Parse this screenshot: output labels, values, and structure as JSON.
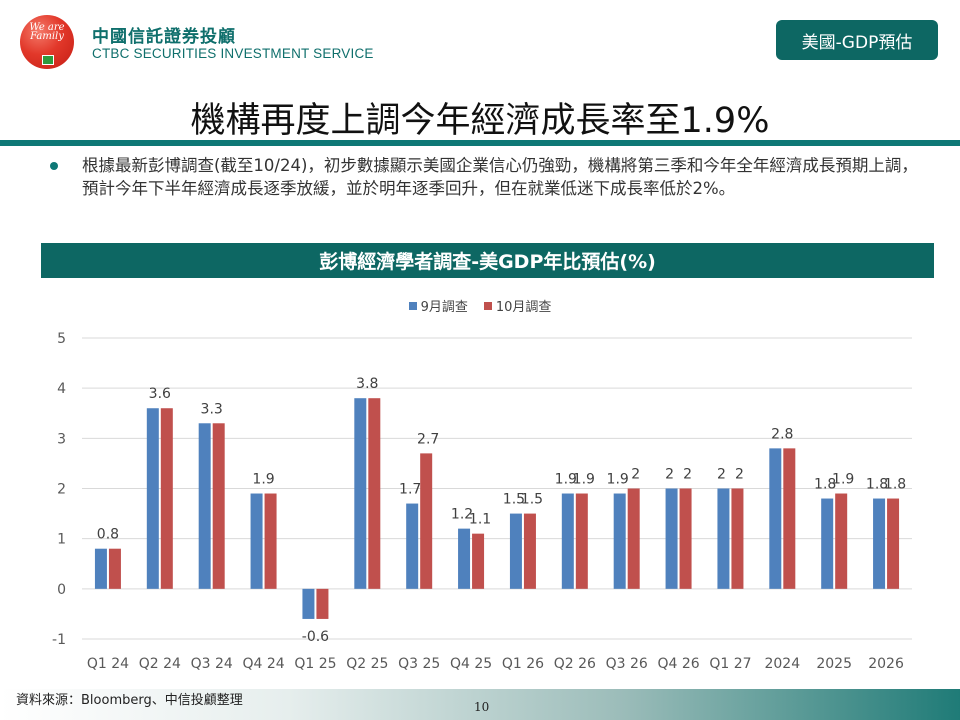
{
  "header": {
    "logo_text": "We are Family",
    "brand_zh": "中國信託證券投顧",
    "brand_en": "CTBC SECURITIES INVESTMENT SERVICE",
    "section_tag": "美國-GDP預估"
  },
  "page_title": "機構再度上調今年經濟成長率至1.9%",
  "body": {
    "bullet_text": "根據最新彭博調查(截至10/24)，初步數據顯示美國企業信心仍強勁，機構將第三季和今年全年經濟成長預期上調，預計今年下半年經濟成長逐季放緩，並於明年逐季回升，但在就業低迷下成長率低於2%。"
  },
  "chart_banner": "彭博經濟學者調查-美GDP年比預估(%)",
  "colors": {
    "brand_teal": "#0d6763",
    "series_sep": "#4f81bd",
    "series_oct": "#c0504d"
  },
  "chart_data": {
    "type": "bar",
    "title": "彭博經濟學者調查-美GDP年比預估(%)",
    "xlabel": "",
    "ylabel": "",
    "ylim": [
      -1,
      5
    ],
    "yticks": [
      -1,
      0,
      1,
      2,
      3,
      4,
      5
    ],
    "grid": true,
    "legend_position": "top-center",
    "categories": [
      "Q1 24",
      "Q2 24",
      "Q3 24",
      "Q4 24",
      "Q1 25",
      "Q2 25",
      "Q3 25",
      "Q4 25",
      "Q1 26",
      "Q2 26",
      "Q3 26",
      "Q4 26",
      "Q1 27",
      "2024",
      "2025",
      "2026"
    ],
    "series": [
      {
        "name": "9月調查",
        "values": [
          0.8,
          3.6,
          3.3,
          1.9,
          -0.6,
          3.8,
          1.7,
          1.2,
          1.5,
          1.9,
          1.9,
          2.0,
          2.0,
          2.8,
          1.8,
          1.8
        ]
      },
      {
        "name": "10月調查",
        "values": [
          0.8,
          3.6,
          3.3,
          1.9,
          -0.6,
          3.8,
          2.7,
          1.1,
          1.5,
          1.9,
          2.0,
          2.0,
          2.0,
          2.8,
          1.9,
          1.8
        ]
      }
    ],
    "data_labels": [
      {
        "category": "Q1 24",
        "text": "0.8"
      },
      {
        "category": "Q2 24",
        "text": "3.6"
      },
      {
        "category": "Q3 24",
        "text": "3.3"
      },
      {
        "category": "Q4 24",
        "text": "1.9"
      },
      {
        "category": "Q1 25",
        "text": "-0.6"
      },
      {
        "category": "Q2 25",
        "text": "3.8"
      },
      {
        "category": "Q3 25",
        "series": "9月調查",
        "text": "1.7"
      },
      {
        "category": "Q3 25",
        "series": "10月調查",
        "text": "2.7"
      },
      {
        "category": "Q4 25",
        "series": "9月調查",
        "text": "1.2"
      },
      {
        "category": "Q4 25",
        "series": "10月調查",
        "text": "1.1"
      },
      {
        "category": "Q1 26",
        "series": "9月調查",
        "text": "1.5"
      },
      {
        "category": "Q1 26",
        "series": "10月調查",
        "text": "1.5"
      },
      {
        "category": "Q2 26",
        "series": "9月調查",
        "text": "1.9"
      },
      {
        "category": "Q2 26",
        "series": "10月調查",
        "text": "1.9"
      },
      {
        "category": "Q3 26",
        "series": "9月調查",
        "text": "1.9"
      },
      {
        "category": "Q3 26",
        "series": "10月調查",
        "text": "2"
      },
      {
        "category": "Q4 26",
        "series": "9月調查",
        "text": "2"
      },
      {
        "category": "Q4 26",
        "series": "10月調查",
        "text": "2"
      },
      {
        "category": "Q1 27",
        "series": "9月調查",
        "text": "2"
      },
      {
        "category": "Q1 27",
        "series": "10月調查",
        "text": "2"
      },
      {
        "category": "2024",
        "text": "2.8"
      },
      {
        "category": "2025",
        "series": "9月調查",
        "text": "1.8"
      },
      {
        "category": "2025",
        "series": "10月調查",
        "text": "1.9"
      },
      {
        "category": "2026",
        "series": "9月調查",
        "text": "1.8"
      },
      {
        "category": "2026",
        "series": "10月調查",
        "text": "1.8"
      }
    ]
  },
  "footer": {
    "source": "資料來源：Bloomberg、中信投顧整理",
    "page_number": "10"
  }
}
